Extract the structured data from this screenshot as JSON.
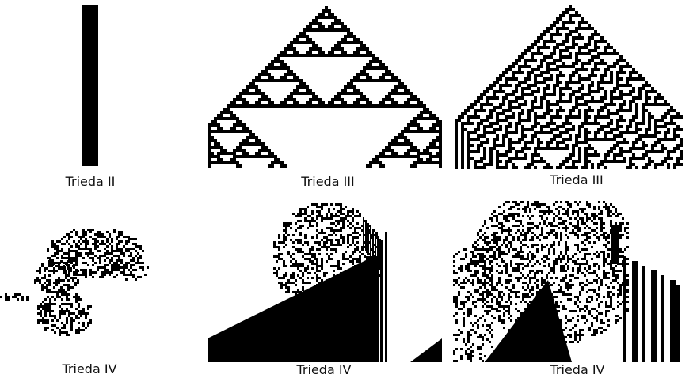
{
  "panels": [
    {
      "caption": "Trieda II",
      "pattern": "vertical-bar"
    },
    {
      "caption": "Trieda III",
      "pattern": "sierpinski-triangles"
    },
    {
      "caption": "Trieda III",
      "pattern": "random-noise"
    },
    {
      "caption": "Trieda IV",
      "pattern": "complex-blob"
    },
    {
      "caption": "Trieda IV",
      "pattern": "complex-structure-with-diagonal"
    },
    {
      "caption": "Trieda IV",
      "pattern": "complex-structure-with-stripes"
    }
  ],
  "colors": {
    "cell_on": "#000000",
    "cell_off": "#ffffff",
    "caption_text": "#111111"
  }
}
